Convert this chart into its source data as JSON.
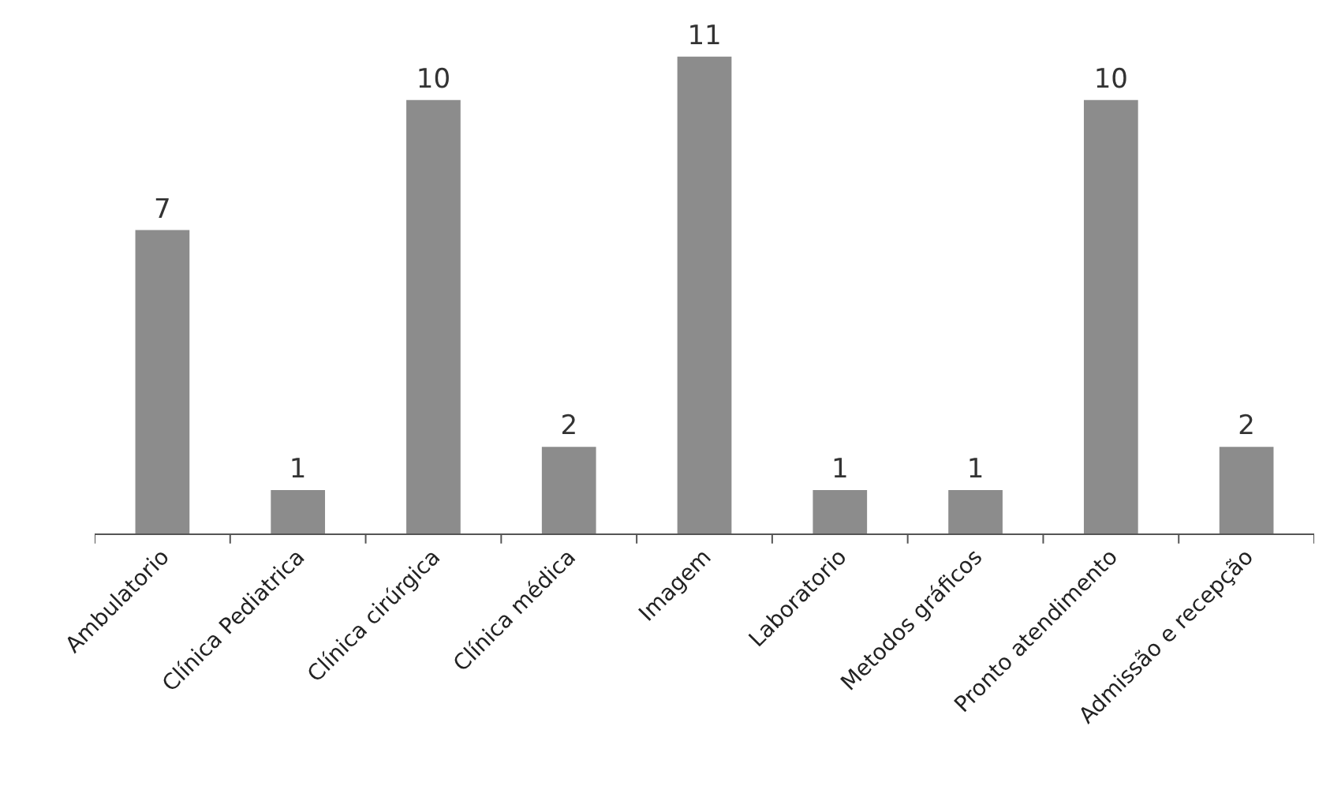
{
  "chart_data": {
    "type": "bar",
    "categories": [
      "Ambulatorio",
      "Clínica Pediatrica",
      "Clínica cirúrgica",
      "Clínica médica",
      "Imagem",
      "Laboratorio",
      "Metodos gráficos",
      "Pronto atendimento",
      "Admissão e recepção"
    ],
    "values": [
      7,
      1,
      10,
      2,
      11,
      1,
      1,
      10,
      2
    ],
    "color": "#8c8c8c",
    "data_labels": true,
    "tick_labels": "x",
    "legend": false
  }
}
